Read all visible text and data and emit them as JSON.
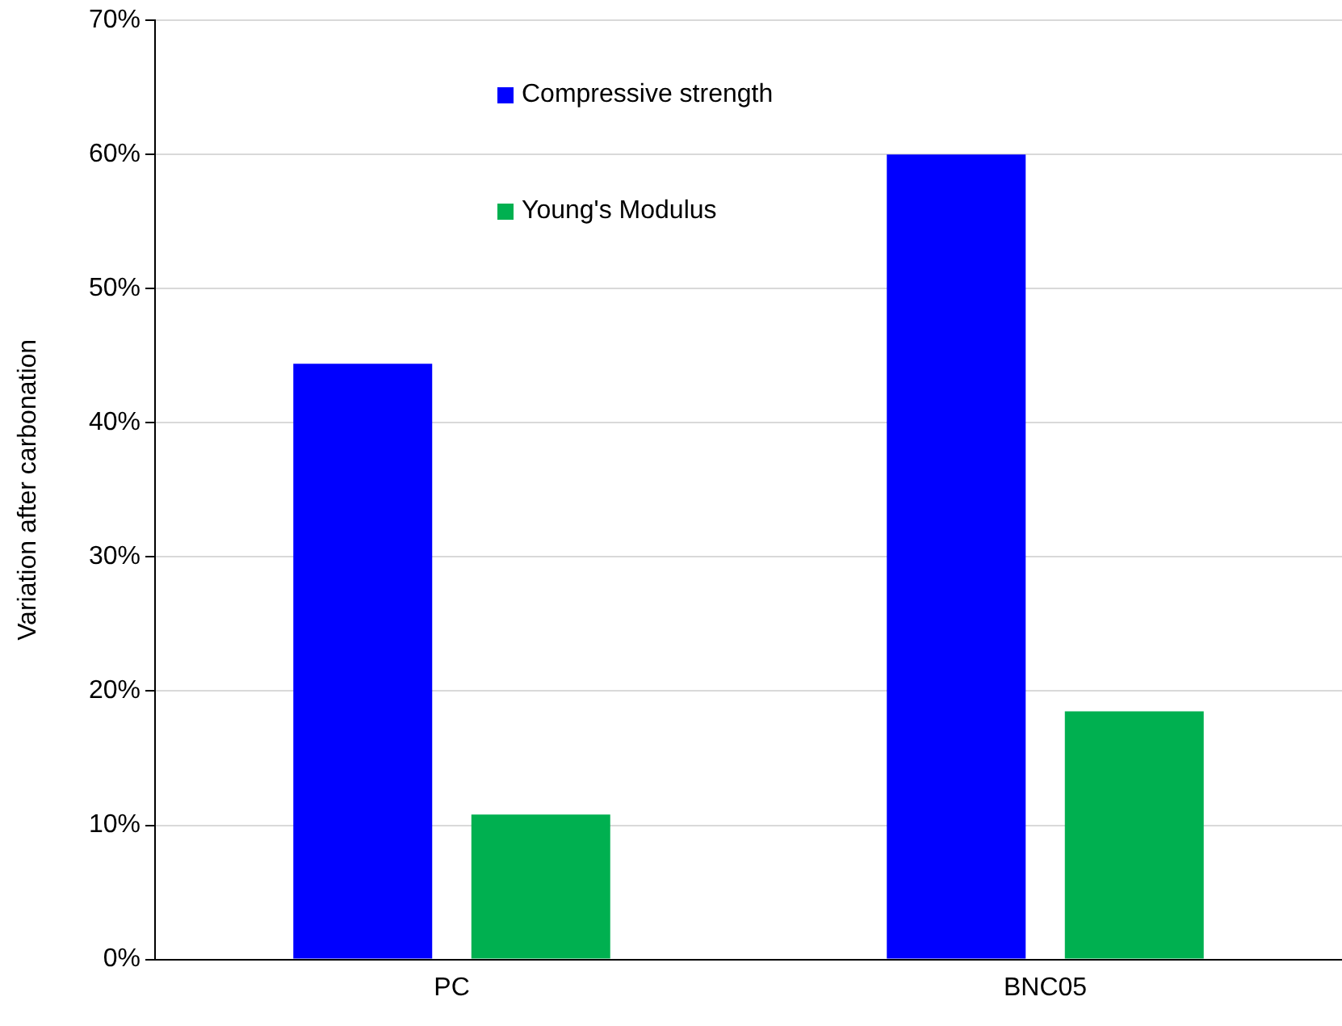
{
  "chart_data": {
    "type": "bar",
    "ylabel": "Variation after carbonation",
    "categories": [
      "PC",
      "BNC05"
    ],
    "series": [
      {
        "name": "Compressive strength",
        "color": "#0000ff",
        "values": [
          44.4,
          60
        ]
      },
      {
        "name": "Young's Modulus",
        "color": "#00b050",
        "values": [
          10.8,
          18.5
        ]
      }
    ],
    "ylim": [
      0,
      70
    ],
    "yticks": [
      {
        "value": 0,
        "label": "0%"
      },
      {
        "value": 10,
        "label": "10%"
      },
      {
        "value": 20,
        "label": "20%"
      },
      {
        "value": 30,
        "label": "30%"
      },
      {
        "value": 40,
        "label": "40%"
      },
      {
        "value": 50,
        "label": "50%"
      },
      {
        "value": 60,
        "label": "60%"
      },
      {
        "value": 70,
        "label": "70%"
      }
    ],
    "grid": "y",
    "legend": "top"
  }
}
